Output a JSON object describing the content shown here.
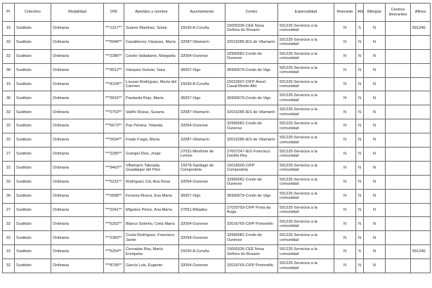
{
  "headers": [
    "Pr",
    "Colectivo",
    "Modalidad",
    "DNI",
    "Apelidos y nombre",
    "Ayuntamiento",
    "Centro",
    "Especialidad",
    "Itinerante",
    "Afín",
    "Bilingüe",
    "Centros itinerantes",
    "Afines"
  ],
  "rows": [
    [
      "15",
      "Sustituto",
      "Ordinaria",
      "***1317**",
      "Suárez Martínez, Sonia",
      "15030-A Coruña",
      "15005336-CEE Nosa Señora do Rosario",
      "591225-Servicios a la comunidad",
      "N",
      "S",
      "N",
      "",
      "591240"
    ],
    [
      "32",
      "Sustituto",
      "Ordinaria",
      "***6946**",
      "Casalderrey Vázquez, María",
      "32087-Vilamarín",
      "32016285-IES de Vilamarín",
      "591225-Servicios a la comunidad",
      "N",
      "N",
      "N",
      "",
      ""
    ],
    [
      "32",
      "Sustituto",
      "Ordinaria",
      "***2386**",
      "Conde Valladares, Margarita",
      "32054-Ourense",
      "32990081-Credo de Ourense",
      "591225-Servicios a la comunidad",
      "N",
      "N",
      "N",
      "",
      ""
    ],
    [
      "36",
      "Sustituto",
      "Ordinaria",
      "***9012**",
      "Vázquez Guisán, Sara",
      "36057-Vigo",
      "36990079-Credo de Vigo",
      "591225-Servicios a la comunidad",
      "N",
      "N",
      "N",
      "",
      ""
    ],
    [
      "15",
      "Sustituto",
      "Ordinaria",
      "***8109**",
      "Louzao Rodríguez, María del Carmen",
      "15030-A Coruña",
      "15022607-CIFP Ánxel Casal-Monte Alto",
      "591225-Servicios a la comunidad",
      "N",
      "N",
      "N",
      "",
      ""
    ],
    [
      "36",
      "Sustituto",
      "Ordinaria",
      "***9915**",
      "Pardavila Rojo, María",
      "36057-Vigo",
      "36990079-Credo de Vigo",
      "591225-Servicios a la comunidad",
      "N",
      "N",
      "N",
      "",
      ""
    ],
    [
      "32",
      "Sustituto",
      "Ordinaria",
      "***0753**",
      "Valiño Rozas, Susana",
      "32087-Vilamarín",
      "32016285-IES de Vilamarín",
      "591225-Servicios a la comunidad",
      "N",
      "N",
      "N",
      "",
      ""
    ],
    [
      "32",
      "Sustituto",
      "Ordinaria",
      "***6673**",
      "Paz Pereira, Yolanda",
      "32054-Ourense",
      "32990081-Credo de Ourense",
      "591225-Servicios a la comunidad",
      "N",
      "N",
      "N",
      "",
      ""
    ],
    [
      "32",
      "Sustituto",
      "Ordinaria",
      "***0034**",
      "Frade Fraga, María",
      "32087-Vilamarín",
      "32016285-IES de Vilamarín",
      "591225-Servicios a la comunidad",
      "N",
      "N",
      "N",
      "",
      ""
    ],
    [
      "27",
      "Sustituto",
      "Ordinaria",
      "***2285**",
      "Grangel Dios, Jorge",
      "27031-Monforte de Lemos",
      "27007247-IES Francisco Daviña Rey",
      "591225-Servicios a la comunidad",
      "N",
      "N",
      "N",
      "",
      ""
    ],
    [
      "15",
      "Sustituto",
      "Ordinaria",
      "***9463**",
      "Villamarín Taboada, Guadalupe del Pino",
      "15078-Santiago de Compostela",
      "15016000-CIFP Compostela",
      "591225-Servicios a la comunidad",
      "N",
      "N",
      "N",
      "",
      ""
    ],
    [
      "32",
      "Sustituto",
      "Ordinaria",
      "***5231**",
      "Rodríguez Cid, Ana Rosa",
      "32054-Ourense",
      "32990081-Credo de Ourense",
      "591225-Servicios a la comunidad",
      "N",
      "N",
      "N",
      "",
      ""
    ],
    [
      "36",
      "Sustituto",
      "Ordinaria",
      "***0998**",
      "Ferreira Rivera, Eva María",
      "36057-Vigo",
      "36990079-Credo de Vigo",
      "591225-Servicios a la comunidad",
      "N",
      "N",
      "N",
      "",
      ""
    ],
    [
      "27",
      "Sustituto",
      "Ordinaria",
      "***2041**",
      "Miguéns Pérez, Ana María",
      "27051-Ribadeo",
      "27020793-CIFP Porta da Auga",
      "591225-Servicios a la comunidad",
      "N",
      "N",
      "N",
      "",
      ""
    ],
    [
      "32",
      "Sustituto",
      "Ordinaria",
      "***5302**",
      "Blanco Sobrino, Celia María",
      "32054-Ourense",
      "32016765-CIFP Portovello",
      "591225-Servicios a la comunidad",
      "N",
      "N",
      "N",
      "",
      ""
    ],
    [
      "32",
      "Sustituto",
      "Ordinaria",
      "***2383**",
      "Costa Rodríguez, Francisco Javier",
      "32054-Ourense",
      "32990081-Credo de Ourense",
      "591225-Servicios a la comunidad",
      "N",
      "N",
      "N",
      "",
      ""
    ],
    [
      "15",
      "Sustituto",
      "Ordinaria",
      "***5254**",
      "Cernadas Rey, María Enriqueta",
      "15030-A Coruña",
      "15005336-CEE Nosa Señora do Rosario",
      "591225-Servicios a la comunidad",
      "N",
      "S",
      "N",
      "",
      "591240"
    ],
    [
      "32",
      "Sustituto",
      "Ordinaria",
      "***8706**",
      "García Lois, Eugenio",
      "32054-Ourense",
      "32016765-CIFP Portovello",
      "591225-Servicios a la comunidad",
      "N",
      "N",
      "N",
      "",
      ""
    ]
  ]
}
